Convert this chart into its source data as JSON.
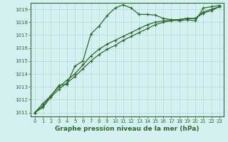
{
  "x": [
    0,
    1,
    2,
    3,
    4,
    5,
    6,
    7,
    8,
    9,
    10,
    11,
    12,
    13,
    14,
    15,
    16,
    17,
    18,
    19,
    20,
    21,
    22,
    23
  ],
  "line1": [
    1011.0,
    1011.7,
    1012.3,
    1013.1,
    1013.2,
    1014.6,
    1015.0,
    1017.1,
    1017.7,
    1018.5,
    1019.1,
    1019.35,
    1019.1,
    1018.6,
    1018.6,
    1018.55,
    1018.3,
    1018.2,
    1018.1,
    1018.2,
    1018.1,
    1019.1,
    1019.2,
    1019.3
  ],
  "line2": [
    1011.0,
    1011.5,
    1012.3,
    1013.0,
    1013.5,
    1014.0,
    1014.7,
    1015.4,
    1015.9,
    1016.3,
    1016.6,
    1016.9,
    1017.2,
    1017.5,
    1017.8,
    1018.0,
    1018.1,
    1018.2,
    1018.2,
    1018.3,
    1018.3,
    1018.8,
    1019.0,
    1019.2
  ],
  "line3": [
    1011.0,
    1011.4,
    1012.2,
    1012.8,
    1013.3,
    1013.8,
    1014.4,
    1015.0,
    1015.5,
    1015.9,
    1016.2,
    1016.6,
    1016.9,
    1017.2,
    1017.5,
    1017.8,
    1018.0,
    1018.1,
    1018.2,
    1018.3,
    1018.3,
    1018.7,
    1018.9,
    1019.2
  ],
  "ylim": [
    1010.7,
    1019.5
  ],
  "xlim": [
    -0.5,
    23.5
  ],
  "ylabel_ticks": [
    1011,
    1012,
    1013,
    1014,
    1015,
    1016,
    1017,
    1018,
    1019
  ],
  "xlabel_ticks": [
    0,
    1,
    2,
    3,
    4,
    5,
    6,
    7,
    8,
    9,
    10,
    11,
    12,
    13,
    14,
    15,
    16,
    17,
    18,
    19,
    20,
    21,
    22,
    23
  ],
  "xlabel": "Graphe pression niveau de la mer (hPa)",
  "line_color": "#2d6a2d",
  "marker": "+",
  "markersize": 3.5,
  "linewidth": 0.9,
  "bg_color": "#d4f0f0",
  "grid_color": "#aadddd",
  "tick_fontsize": 5.0,
  "label_fontsize": 6.5,
  "label_fontweight": "bold"
}
